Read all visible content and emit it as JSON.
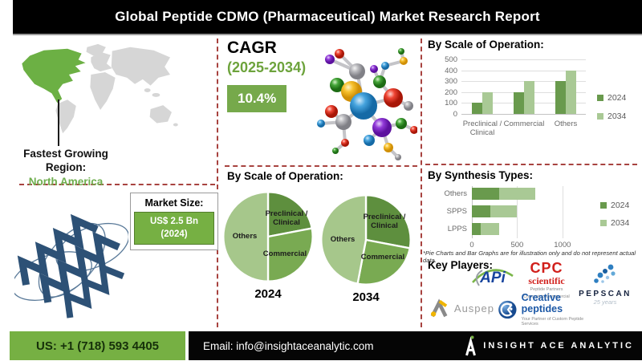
{
  "title": "Global  Peptide CDMO (Pharmaceutical) Market Research Report",
  "region": {
    "label_line1": "Fastest Growing",
    "label_line2": "Region:",
    "value": "North America"
  },
  "market_size": {
    "label": "Market Size:",
    "value_line1": "US$ 2.5 Bn",
    "value_line2": "(2024)"
  },
  "cagr": {
    "label": "CAGR",
    "period": "(2025-2034)",
    "value": "10.4%"
  },
  "sections": {
    "scale_bar_title": "By Scale of Operation:",
    "scale_pie_title": "By Scale of Operation:",
    "synthesis_title": "By Synthesis Types:",
    "key_players_title": "Key Players:",
    "disclaimer": "*Pie Charts and Bar Graphs are for illustration only and do not represent actual data."
  },
  "chart_data": [
    {
      "type": "bar",
      "title": "By Scale of Operation:",
      "categories": [
        "Preclinical / Clinical",
        "Commercial",
        "Others"
      ],
      "series": [
        {
          "name": "2024",
          "values": [
            100,
            200,
            300
          ],
          "color": "#699a4d"
        },
        {
          "name": "2034",
          "values": [
            200,
            300,
            400
          ],
          "color": "#a9c995"
        }
      ],
      "ylim": [
        0,
        500
      ],
      "yticks": [
        0,
        100,
        200,
        300,
        400,
        500
      ],
      "grid": true,
      "legend_position": "right"
    },
    {
      "type": "pie",
      "title": "2024",
      "labels": [
        "Preclinical / Clinical",
        "Commercial",
        "Others"
      ],
      "values": [
        22,
        28,
        50
      ],
      "colors": [
        "#5e8f3e",
        "#79aa52",
        "#a6c78b"
      ]
    },
    {
      "type": "pie",
      "title": "2034",
      "labels": [
        "Preclinical / Clinical",
        "Commercial",
        "Others"
      ],
      "values": [
        28,
        25,
        47
      ],
      "colors": [
        "#5e8f3e",
        "#79aa52",
        "#a6c78b"
      ]
    },
    {
      "type": "bar",
      "subtype": "stacked-horizontal",
      "title": "By Synthesis Types:",
      "categories": [
        "Others",
        "SPPS",
        "LPPS"
      ],
      "series": [
        {
          "name": "2024",
          "values": [
            300,
            200,
            100
          ],
          "color": "#699a4d"
        },
        {
          "name": "2034",
          "values": [
            400,
            300,
            200
          ],
          "color": "#a9c995"
        }
      ],
      "xlim": [
        0,
        1400
      ],
      "xticks": [
        0,
        500,
        1000
      ],
      "grid": true,
      "legend_position": "right"
    }
  ],
  "key_players": [
    {
      "name": "APi"
    },
    {
      "name": "CPC",
      "word2": "scientific",
      "tagline1": "Peptide Partners",
      "tagline2": "Concept to Commercial"
    },
    {
      "name": "PEPSCAN",
      "tagline1": "25 years"
    },
    {
      "name": "Auspep"
    },
    {
      "name": "Creative peptides",
      "tagline1": "Your Partner of Custom Peptide Services"
    }
  ],
  "footer": {
    "phone": "US: +1 (718) 593 4405",
    "email": "Email: info@insightaceanalytic.com",
    "brand": "INSIGHT ACE ANALYTIC"
  },
  "colors": {
    "accent_green": "#76b043",
    "series_2024": "#699a4d",
    "series_2034": "#a9c995",
    "dashed_line": "#a84340"
  }
}
